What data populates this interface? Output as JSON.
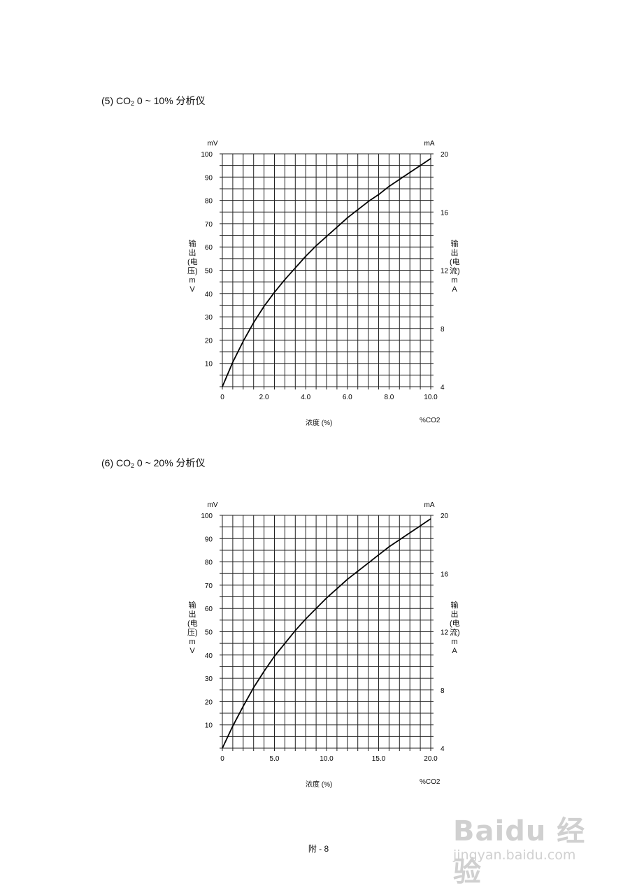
{
  "sections": [
    {
      "title_prefix": "(5) CO",
      "title_sub": "2",
      "title_suffix": "  0 ~ 10%  分析仪"
    },
    {
      "title_prefix": "(6) CO",
      "title_sub": "2",
      "title_suffix": "  0 ~ 20%  分析仪"
    }
  ],
  "chart_data": [
    {
      "type": "line",
      "left_unit": "mV",
      "right_unit": "mA",
      "left_axis_label": "输出(电压)mV",
      "right_axis_label": "输出(电流)mA",
      "xlabel": "浓度 (%)",
      "x_unit_label": "%CO2",
      "xlim": [
        0,
        10
      ],
      "ylim": [
        0,
        100
      ],
      "y2lim": [
        4,
        20
      ],
      "x_tick_labels": [
        "0",
        "2.0",
        "4.0",
        "6.0",
        "8.0",
        "10.0"
      ],
      "y_tick_labels": [
        "10",
        "20",
        "30",
        "40",
        "50",
        "60",
        "70",
        "80",
        "90",
        "100"
      ],
      "y2_tick_labels": [
        "4",
        "8",
        "12",
        "16",
        "20"
      ],
      "grid": true,
      "series": [
        {
          "x": [
            0,
            0.5,
            1,
            1.5,
            2,
            2.5,
            3,
            3.5,
            4,
            4.5,
            5,
            5.5,
            6,
            6.5,
            7,
            7.5,
            8,
            8.5,
            9,
            9.5,
            10
          ],
          "values": [
            0,
            10.5,
            19.5,
            27.5,
            34.5,
            40.5,
            46,
            51,
            56,
            60.5,
            64.5,
            68.5,
            72.5,
            76,
            79.5,
            82.5,
            86,
            89,
            92,
            95,
            98
          ]
        }
      ]
    },
    {
      "type": "line",
      "left_unit": "mV",
      "right_unit": "mA",
      "left_axis_label": "输出(电压)mV",
      "right_axis_label": "输出(电流)mA",
      "xlabel": "浓度 (%)",
      "x_unit_label": "%CO2",
      "xlim": [
        0,
        20
      ],
      "ylim": [
        0,
        100
      ],
      "y2lim": [
        4,
        20
      ],
      "x_tick_labels": [
        "0",
        "5.0",
        "10.0",
        "15.0",
        "20.0"
      ],
      "y_tick_labels": [
        "10",
        "20",
        "30",
        "40",
        "50",
        "60",
        "70",
        "80",
        "90",
        "100"
      ],
      "y2_tick_labels": [
        "4",
        "8",
        "12",
        "16",
        "20"
      ],
      "grid": true,
      "series": [
        {
          "x": [
            0,
            1,
            2,
            3,
            4,
            5,
            6,
            7,
            8,
            9,
            10,
            11,
            12,
            13,
            14,
            15,
            16,
            17,
            18,
            19,
            20
          ],
          "values": [
            0,
            9.5,
            18,
            26,
            33,
            39.5,
            45,
            50.5,
            55.5,
            60,
            64.5,
            68.5,
            72.5,
            76,
            79.5,
            83,
            86.5,
            89.5,
            92.5,
            95.5,
            98.5
          ]
        }
      ]
    }
  ],
  "page_number": "附 - 8",
  "watermark": {
    "main": "Baidu 经验",
    "url": "jingyan.baidu.com"
  }
}
